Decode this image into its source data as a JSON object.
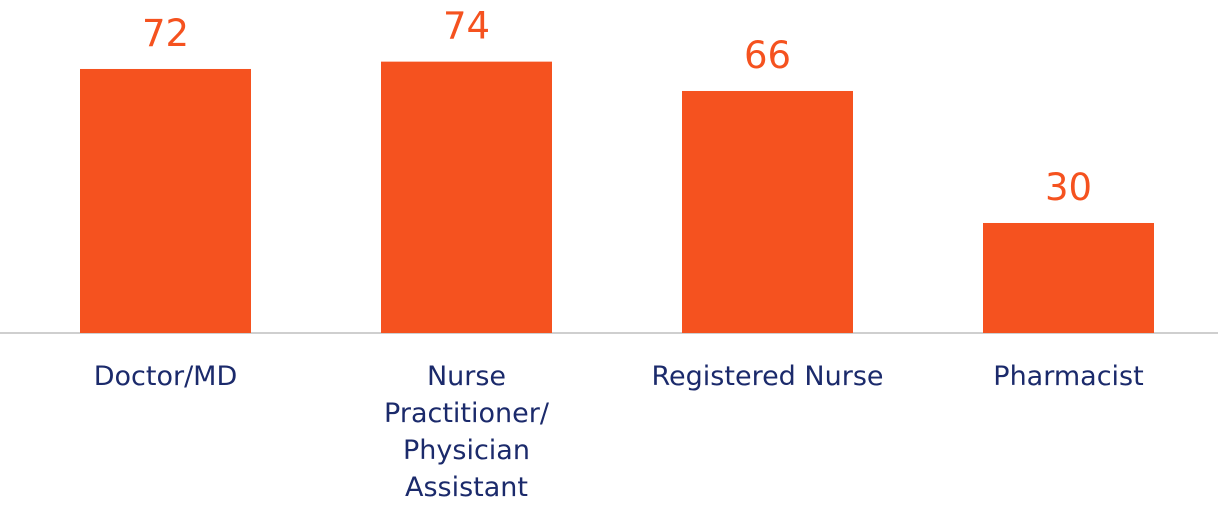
{
  "chart_data": {
    "type": "bar",
    "categories": [
      "Doctor/MD",
      "Nurse Practitioner/ Physician Assistant",
      "Registered Nurse",
      "Pharmacist"
    ],
    "values": [
      72,
      74,
      66,
      30
    ],
    "color": "#f5521f"
  }
}
